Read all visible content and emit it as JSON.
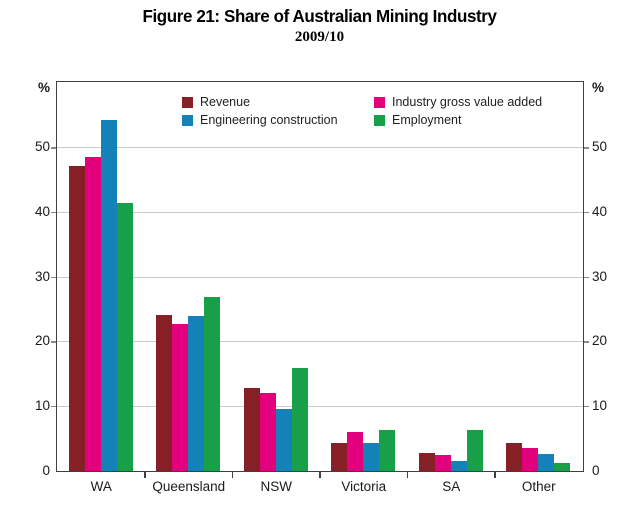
{
  "title": "Figure 21: Share of Australian Mining Industry",
  "subtitle": "2009/10",
  "axis": {
    "left_unit": "%",
    "right_unit": "%",
    "yticks": [
      0,
      10,
      20,
      30,
      40,
      50
    ],
    "ymax": 60
  },
  "colors": {
    "grid": "#cbcbcb",
    "axis": "#3f3f3f",
    "revenue": "#871f27",
    "industry_gross_value_added": "#e2007d",
    "engineering_construction": "#1482b8",
    "employment": "#18a048"
  },
  "chart_data": {
    "type": "bar",
    "title": "Figure 21: Share of Australian Mining Industry",
    "subtitle": "2009/10",
    "categories": [
      "WA",
      "Queensland",
      "NSW",
      "Victoria",
      "SA",
      "Other"
    ],
    "series": [
      {
        "name": "Revenue",
        "color": "#871f27",
        "values": [
          47.2,
          24.1,
          12.8,
          4.3,
          2.8,
          4.3
        ]
      },
      {
        "name": "Industry gross value added",
        "color": "#e2007d",
        "values": [
          48.6,
          22.8,
          12.1,
          6.1,
          2.5,
          3.5
        ]
      },
      {
        "name": "Engineering construction",
        "color": "#1482b8",
        "values": [
          54.3,
          23.9,
          9.6,
          4.4,
          1.6,
          2.7
        ]
      },
      {
        "name": "Employment",
        "color": "#18a048",
        "values": [
          41.5,
          26.9,
          15.9,
          6.4,
          6.3,
          1.2
        ]
      }
    ],
    "xlabel": "",
    "ylabel": "%",
    "ylim": [
      0,
      60
    ],
    "yticks": [
      0,
      10,
      20,
      30,
      40,
      50
    ],
    "grid": true,
    "legend_position": "top-inside",
    "legend_columns": 2,
    "legend_order": [
      "Revenue",
      "Industry gross value added",
      "Engineering construction",
      "Employment"
    ]
  }
}
